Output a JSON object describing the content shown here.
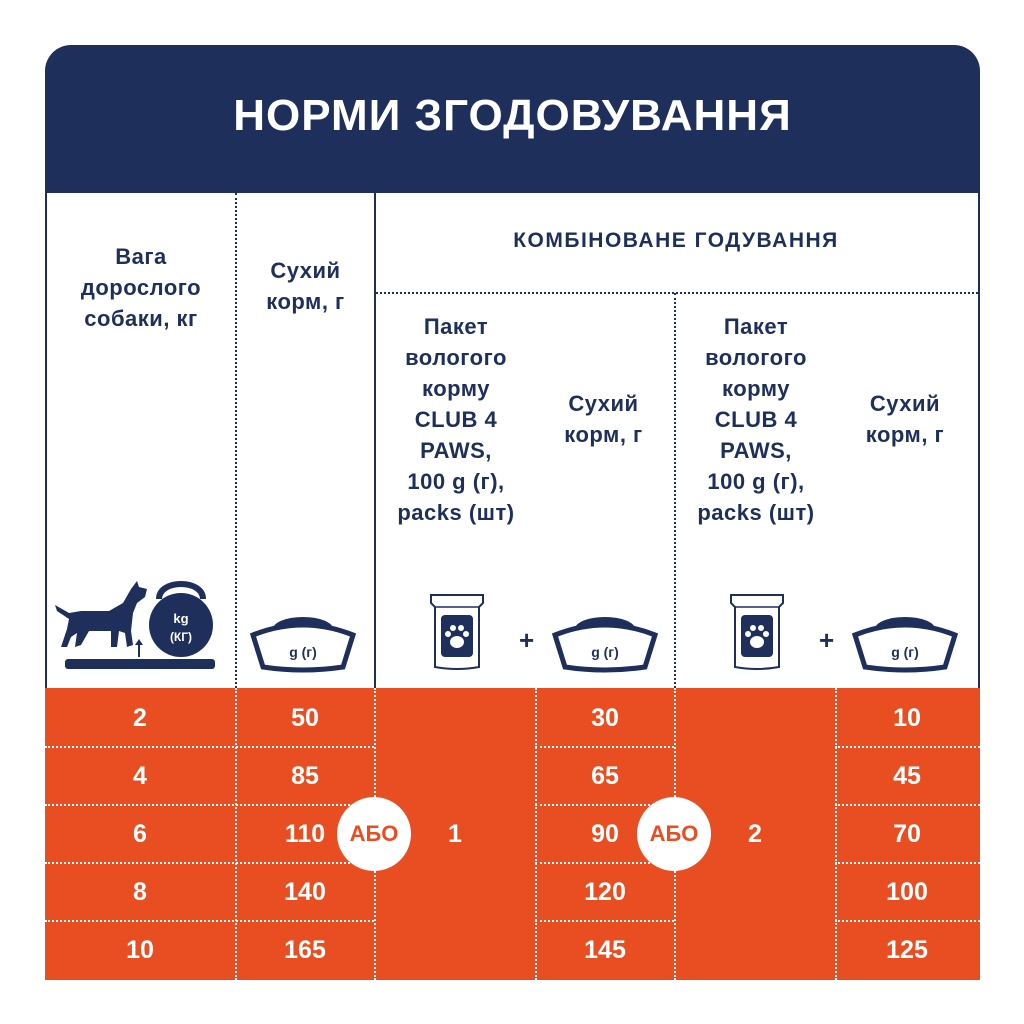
{
  "title": "НОРМИ ЗГОДОВУВАННЯ",
  "columns": {
    "weight": "Вага\nдорослого\nсобаки, кг",
    "dry": "Сухий\nкорм, г",
    "combined": "КОМБІНОВАНЕ ГОДУВАННЯ",
    "wet_pack": "Пакет\nвологого\nкорму\nCLUB 4\nPAWS,\n100 g (г),\npacks (шт)",
    "dry_combo": "Сухий\nкорм, г"
  },
  "icons": {
    "kettlebell_top": "kg",
    "kettlebell_bottom": "(КГ)",
    "bowl_label": "g (г)",
    "plus": "+"
  },
  "separator": "АБО",
  "packs": [
    "1",
    "2"
  ],
  "rows": [
    {
      "weight": "2",
      "dry": "50",
      "combo1_dry": "30",
      "combo2_dry": "10"
    },
    {
      "weight": "4",
      "dry": "85",
      "combo1_dry": "65",
      "combo2_dry": "45"
    },
    {
      "weight": "6",
      "dry": "110",
      "combo1_dry": "90",
      "combo2_dry": "70"
    },
    {
      "weight": "8",
      "dry": "140",
      "combo1_dry": "120",
      "combo2_dry": "100"
    },
    {
      "weight": "10",
      "dry": "165",
      "combo1_dry": "145",
      "combo2_dry": "125"
    }
  ],
  "colors": {
    "navy": "#1e2f5c",
    "orange": "#e84e22",
    "white": "#ffffff"
  }
}
